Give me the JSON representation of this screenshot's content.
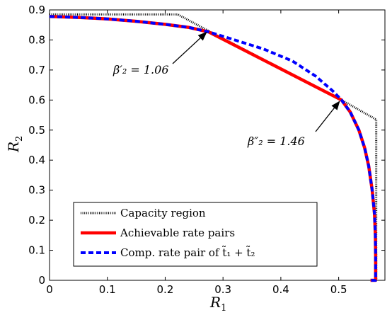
{
  "chart_data": {
    "type": "line",
    "xlabel": "R",
    "xlabel_sub": "1",
    "ylabel": "R",
    "ylabel_sub": "2",
    "xlim": [
      0,
      0.58
    ],
    "ylim": [
      0,
      0.9
    ],
    "x_ticks": [
      0,
      0.1,
      0.2,
      0.3,
      0.4,
      0.5
    ],
    "x_tick_labels": [
      "0",
      "0.1",
      "0.2",
      "0.3",
      "0.4",
      "0.5"
    ],
    "y_ticks": [
      0,
      0.1,
      0.2,
      0.3,
      0.4,
      0.5,
      0.6,
      0.7,
      0.8,
      0.9
    ],
    "y_tick_labels": [
      "0",
      "0.1",
      "0.2",
      "0.3",
      "0.4",
      "0.5",
      "0.6",
      "0.7",
      "0.8",
      "0.9"
    ],
    "grid": false,
    "legend_position": "bottom-left",
    "series": [
      {
        "name": "Capacity region",
        "color": "#000000",
        "style": "dotted-dense",
        "x": [
          0,
          0.222,
          0.275,
          0.505,
          0.565,
          0.565
        ],
        "y": [
          0.885,
          0.885,
          0.83,
          0.6,
          0.535,
          0
        ]
      },
      {
        "name": "Achievable rate pairs",
        "color": "#ff0000",
        "style": "solid",
        "x": [
          0,
          0.05,
          0.1,
          0.15,
          0.2,
          0.24,
          0.275,
          0.505,
          0.52,
          0.535,
          0.545,
          0.552,
          0.558,
          0.562,
          0.5635,
          0.564,
          0.564,
          0.555
        ],
        "y": [
          0.878,
          0.875,
          0.87,
          0.862,
          0.852,
          0.842,
          0.827,
          0.6,
          0.56,
          0.5,
          0.44,
          0.38,
          0.3,
          0.22,
          0.15,
          0.08,
          0,
          0
        ]
      },
      {
        "name": "Comp. rate pair of t̃1 + t̃2",
        "color": "#0000ff",
        "style": "dashed",
        "x": [
          0,
          0.05,
          0.1,
          0.15,
          0.2,
          0.24,
          0.275,
          0.32,
          0.37,
          0.42,
          0.46,
          0.49,
          0.505,
          0.52,
          0.535,
          0.545,
          0.552,
          0.558,
          0.562,
          0.5635,
          0.564,
          0.564,
          0.555
        ],
        "y": [
          0.878,
          0.875,
          0.87,
          0.862,
          0.852,
          0.842,
          0.827,
          0.8,
          0.77,
          0.73,
          0.68,
          0.63,
          0.6,
          0.56,
          0.5,
          0.44,
          0.38,
          0.3,
          0.22,
          0.15,
          0.08,
          0,
          0
        ]
      }
    ],
    "annotations": [
      {
        "label": "β′₂ = 1.06",
        "point": [
          0.275,
          0.83
        ]
      },
      {
        "label": "β″₂ = 1.46",
        "point": [
          0.505,
          0.6
        ]
      }
    ],
    "legend_entries": [
      "Capacity region",
      "Achievable rate pairs",
      "Comp. rate pair of t̃₁ + t̃₂"
    ]
  }
}
